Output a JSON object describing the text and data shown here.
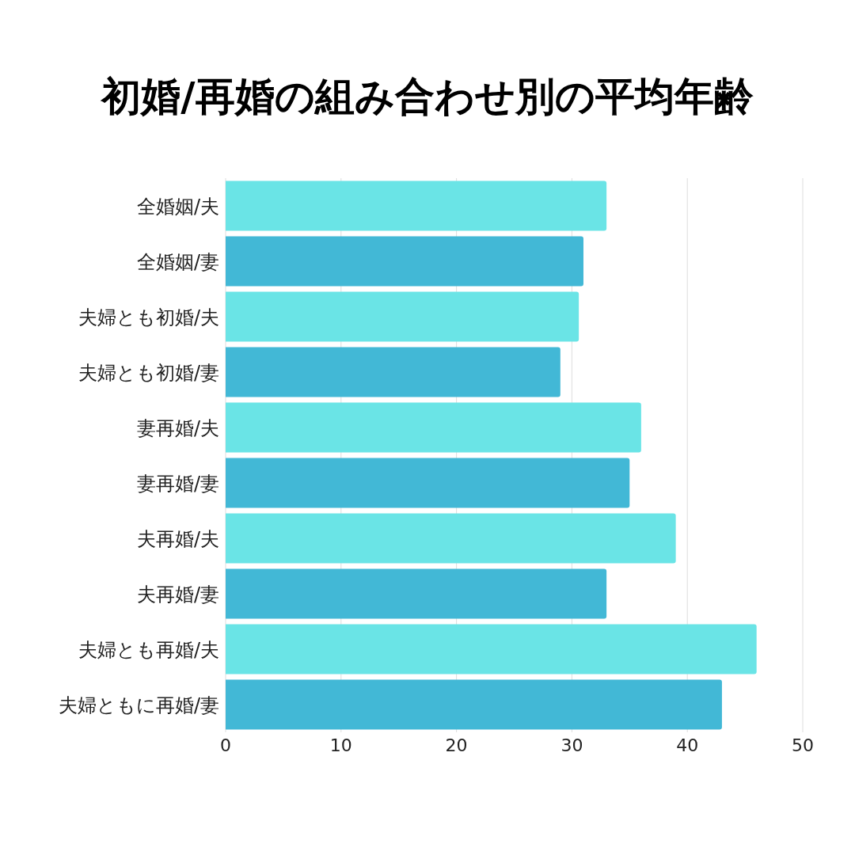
{
  "chart_data": {
    "type": "bar",
    "orientation": "horizontal",
    "title": "初婚/再婚の組み合わせ別の平均年齢",
    "categories": [
      "全婚姻/夫",
      "全婚姻/妻",
      "夫婦とも初婚/夫",
      "夫婦とも初婚/妻",
      "妻再婚/夫",
      "妻再婚/妻",
      "夫再婚/夫",
      "夫再婚/妻",
      "夫婦とも再婚/夫",
      "夫婦ともに再婚/妻"
    ],
    "values": [
      33,
      31,
      30.6,
      29,
      36,
      35,
      39,
      33,
      46,
      43
    ],
    "colors": [
      "#6ae4e6",
      "#42b8d6",
      "#6ae4e6",
      "#42b8d6",
      "#6ae4e6",
      "#42b8d6",
      "#6ae4e6",
      "#42b8d6",
      "#6ae4e6",
      "#42b8d6"
    ],
    "xlim": [
      0,
      50
    ],
    "xticks": [
      0,
      10,
      20,
      30,
      40,
      50
    ],
    "grid": "x"
  }
}
